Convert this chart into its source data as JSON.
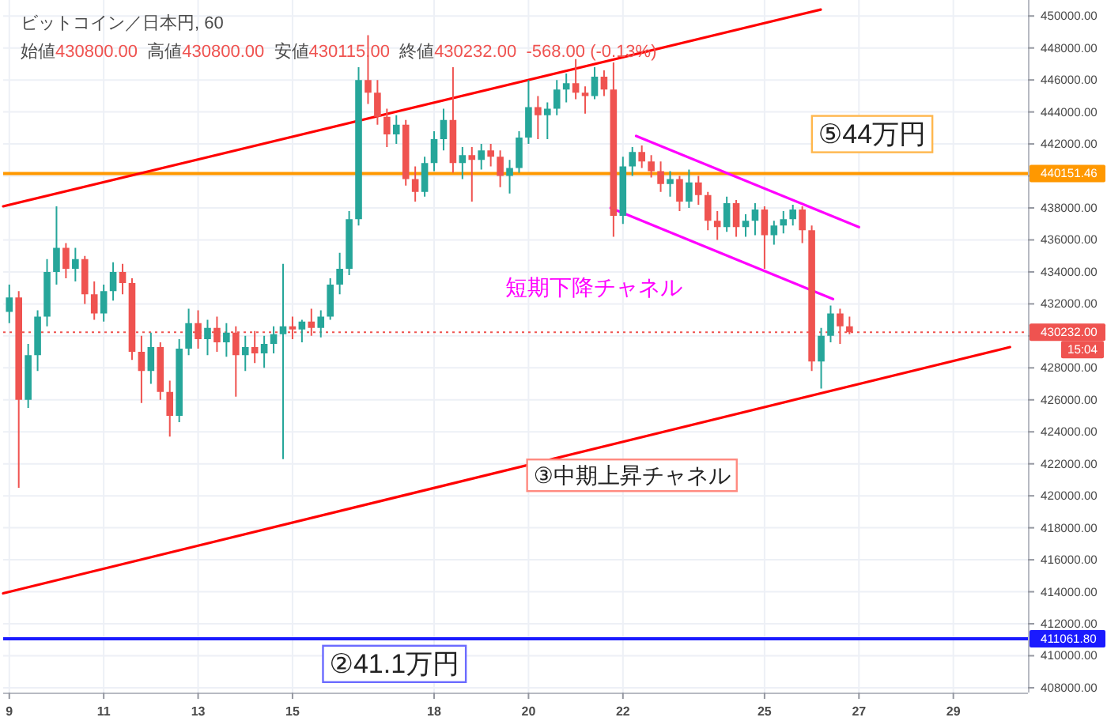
{
  "chart_data": {
    "type": "candlestick",
    "title": "ビットコイン／日本円, 60",
    "subtitle": "始値430800.00  高値430800.00  安値430115.00  終値430232.00  -568.00 (-0.13%)",
    "x": [
      9.0,
      9.2,
      9.4,
      9.6,
      9.8,
      10.0,
      10.2,
      10.4,
      10.6,
      10.8,
      11.0,
      11.2,
      11.4,
      11.6,
      11.8,
      12.0,
      12.2,
      12.4,
      12.6,
      12.8,
      13.0,
      13.2,
      13.4,
      13.6,
      13.8,
      14.0,
      14.2,
      14.4,
      14.6,
      14.8,
      15.0,
      15.2,
      15.4,
      15.6,
      15.8,
      16.0,
      16.2,
      16.4,
      16.6,
      16.8,
      17.0,
      17.2,
      17.4,
      17.6,
      17.8,
      18.0,
      18.2,
      18.4,
      18.6,
      18.8,
      19.0,
      19.2,
      19.4,
      19.6,
      19.8,
      20.0,
      20.2,
      20.4,
      20.6,
      20.8,
      21.0,
      21.2,
      21.4,
      21.6,
      21.8,
      22.0,
      22.2,
      22.4,
      22.6,
      22.8,
      23.0,
      23.2,
      23.4,
      23.6,
      23.8,
      24.0,
      24.2,
      24.4,
      24.6,
      24.8,
      25.0,
      25.2,
      25.4,
      25.6,
      25.8,
      26.0,
      26.2,
      26.4,
      26.6,
      26.8
    ],
    "ohlc": [
      [
        431500,
        433200,
        430800,
        432400
      ],
      [
        432400,
        432800,
        420500,
        426000
      ],
      [
        426000,
        429500,
        425500,
        428800
      ],
      [
        428800,
        431600,
        427800,
        431200
      ],
      [
        431200,
        434800,
        430600,
        434000
      ],
      [
        434000,
        438100,
        433200,
        435500
      ],
      [
        435500,
        435800,
        433600,
        434200
      ],
      [
        434200,
        435500,
        433400,
        434800
      ],
      [
        434800,
        435000,
        432000,
        432600
      ],
      [
        432600,
        433400,
        431000,
        431400
      ],
      [
        431400,
        433200,
        430900,
        432800
      ],
      [
        432800,
        434600,
        432200,
        434000
      ],
      [
        434000,
        434500,
        432600,
        433300
      ],
      [
        433300,
        433600,
        428500,
        429000
      ],
      [
        429000,
        430000,
        425800,
        427800
      ],
      [
        427800,
        430200,
        427000,
        429300
      ],
      [
        429300,
        429600,
        426000,
        426500
      ],
      [
        426500,
        427200,
        423700,
        425000
      ],
      [
        425000,
        429800,
        424600,
        429200
      ],
      [
        429200,
        431700,
        428800,
        430800
      ],
      [
        430800,
        431600,
        429200,
        429800
      ],
      [
        429800,
        431000,
        428800,
        430500
      ],
      [
        430500,
        431200,
        429000,
        429600
      ],
      [
        429600,
        430800,
        428700,
        430200
      ],
      [
        430200,
        430600,
        426200,
        428800
      ],
      [
        428800,
        430000,
        427800,
        429300
      ],
      [
        429300,
        430300,
        428300,
        428900
      ],
      [
        428900,
        430000,
        428000,
        429500
      ],
      [
        429500,
        430600,
        428900,
        430100
      ],
      [
        430100,
        434500,
        422300,
        430600
      ],
      [
        430600,
        431200,
        429800,
        430400
      ],
      [
        430400,
        431000,
        429600,
        430900
      ],
      [
        430900,
        431700,
        430000,
        430500
      ],
      [
        430500,
        431600,
        429900,
        431200
      ],
      [
        431200,
        433600,
        431000,
        433200
      ],
      [
        433200,
        435200,
        432600,
        434200
      ],
      [
        434200,
        437800,
        433800,
        437300
      ],
      [
        437300,
        446800,
        436900,
        446000
      ],
      [
        446000,
        448800,
        444500,
        445200
      ],
      [
        445200,
        446000,
        443200,
        443700
      ],
      [
        443700,
        444200,
        441800,
        442600
      ],
      [
        442600,
        443800,
        442000,
        443200
      ],
      [
        443200,
        443500,
        439400,
        439800
      ],
      [
        439800,
        440600,
        438400,
        439000
      ],
      [
        439000,
        441200,
        438700,
        440800
      ],
      [
        440800,
        442800,
        440300,
        442300
      ],
      [
        442300,
        444200,
        441600,
        443500
      ],
      [
        443500,
        446800,
        440200,
        440800
      ],
      [
        440800,
        441800,
        439800,
        441300
      ],
      [
        441300,
        441800,
        438400,
        441000
      ],
      [
        441000,
        442000,
        440400,
        441600
      ],
      [
        441600,
        442000,
        440600,
        441200
      ],
      [
        441200,
        441600,
        439300,
        440000
      ],
      [
        440000,
        441000,
        438900,
        440500
      ],
      [
        440500,
        442800,
        440200,
        442400
      ],
      [
        442400,
        446000,
        442000,
        444300
      ],
      [
        444300,
        445000,
        442300,
        443800
      ],
      [
        443800,
        444600,
        442300,
        444200
      ],
      [
        444200,
        446000,
        443800,
        445400
      ],
      [
        445400,
        446400,
        444600,
        445800
      ],
      [
        445800,
        447300,
        444800,
        445200
      ],
      [
        445200,
        445600,
        443900,
        445000
      ],
      [
        445000,
        446800,
        444800,
        446200
      ],
      [
        446200,
        446600,
        445000,
        445400
      ],
      [
        445400,
        447100,
        436200,
        437500
      ],
      [
        437500,
        441200,
        437000,
        440600
      ],
      [
        440600,
        441800,
        440000,
        441500
      ],
      [
        441500,
        441900,
        440500,
        440900
      ],
      [
        440900,
        441300,
        439900,
        440300
      ],
      [
        440300,
        440900,
        439000,
        439500
      ],
      [
        439500,
        440300,
        438700,
        439800
      ],
      [
        439800,
        440000,
        437800,
        438400
      ],
      [
        438400,
        440400,
        438000,
        439600
      ],
      [
        439600,
        440000,
        438200,
        438800
      ],
      [
        438800,
        439000,
        436600,
        437200
      ],
      [
        437200,
        437800,
        436000,
        436800
      ],
      [
        436800,
        438700,
        436500,
        438300
      ],
      [
        438300,
        438500,
        436200,
        436800
      ],
      [
        436800,
        437600,
        436200,
        437200
      ],
      [
        437200,
        438300,
        436300,
        437900
      ],
      [
        437900,
        438100,
        434200,
        436300
      ],
      [
        436300,
        437200,
        435700,
        436900
      ],
      [
        436900,
        437800,
        436400,
        437300
      ],
      [
        437300,
        438200,
        436900,
        437900
      ],
      [
        437900,
        438100,
        435800,
        436600
      ],
      [
        436600,
        436900,
        427800,
        428400
      ],
      [
        428400,
        430500,
        426700,
        430000
      ],
      [
        430000,
        431900,
        429600,
        431400
      ],
      [
        431400,
        431700,
        429500,
        430600
      ],
      [
        430600,
        431200,
        430100,
        430232
      ]
    ],
    "series": [
      {
        "type": "line",
        "color": "#ff0000",
        "x": [
          8.87,
          26.19
        ],
        "values": [
          438100,
          450400
        ]
      },
      {
        "type": "line",
        "color": "#ff0000",
        "x": [
          8.87,
          30.2
        ],
        "values": [
          413900,
          429300
        ]
      },
      {
        "type": "line",
        "color": "#ff00ff",
        "x": [
          22.28,
          27.0
        ],
        "values": [
          442500,
          436800
        ]
      },
      {
        "type": "line",
        "color": "#ff00ff",
        "x": [
          21.74,
          26.45
        ],
        "values": [
          438000,
          432300
        ]
      }
    ],
    "xlim": [
      8.87,
      30.58
    ],
    "xticks": [
      9,
      11,
      13,
      15,
      18,
      20,
      22,
      25,
      27,
      29
    ],
    "ylim": [
      407700,
      451000
    ],
    "yticks": [
      {
        "value": 408000,
        "label": "408000.00"
      },
      {
        "value": 410000,
        "label": "410000.00"
      },
      {
        "value": 412000,
        "label": "412000.00"
      },
      {
        "value": 414000,
        "label": "414000.00"
      },
      {
        "value": 416000,
        "label": "416000.00"
      },
      {
        "value": 418000,
        "label": "418000.00"
      },
      {
        "value": 420000,
        "label": "420000.00"
      },
      {
        "value": 422000,
        "label": "422000.00"
      },
      {
        "value": 424000,
        "label": "424000.00"
      },
      {
        "value": 426000,
        "label": "426000.00"
      },
      {
        "value": 428000,
        "label": "428000.00"
      },
      {
        "value": 430000,
        "label": null
      },
      {
        "value": 432000,
        "label": "432000.00"
      },
      {
        "value": 434000,
        "label": "434000.00"
      },
      {
        "value": 436000,
        "label": "436000.00"
      },
      {
        "value": 438000,
        "label": "438000.00"
      },
      {
        "value": 440000,
        "label": null
      },
      {
        "value": 442000,
        "label": "442000.00"
      },
      {
        "value": 444000,
        "label": "444000.00"
      },
      {
        "value": 446000,
        "label": "446000.00"
      },
      {
        "value": 448000,
        "label": "448000.00"
      },
      {
        "value": 450000,
        "label": "450000.00"
      }
    ],
    "grid": true,
    "ref_lines": [
      {
        "axis": "y",
        "value": 440151.46,
        "label": "440151.46",
        "color": "#ff9800"
      },
      {
        "axis": "y",
        "value": 411061.8,
        "label": "411061.80",
        "color": "#1a1aff"
      },
      {
        "axis": "y",
        "value": 430232,
        "label": "430232.00",
        "color": "#ef5350",
        "line_style": "dotted"
      }
    ],
    "annotations": [
      "⑤44万円",
      "短期下降チャネル",
      "③中期上昇チャネル",
      "②41.1万円",
      "15:04"
    ]
  }
}
